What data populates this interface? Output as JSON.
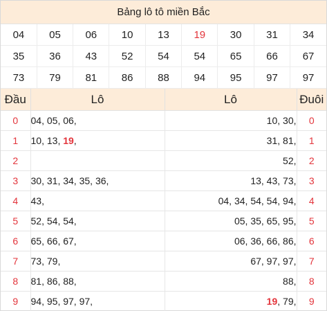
{
  "title": "Bảng lô tô miền Bắc",
  "grid": [
    [
      "04",
      "05",
      "06",
      "10",
      "13",
      "19",
      "30",
      "31",
      "34"
    ],
    [
      "35",
      "36",
      "43",
      "52",
      "54",
      "54",
      "65",
      "66",
      "67"
    ],
    [
      "73",
      "79",
      "81",
      "86",
      "88",
      "94",
      "95",
      "97",
      "97"
    ]
  ],
  "grid_highlight": [
    "19"
  ],
  "headers": {
    "dau": "Đầu",
    "lo_left": "Lô",
    "lo_right": "Lô",
    "duoi": "Đuôi"
  },
  "rows": [
    {
      "dau": "0",
      "left": [
        "04",
        "05",
        "06"
      ],
      "right": [
        "10",
        "30"
      ],
      "duoi": "0"
    },
    {
      "dau": "1",
      "left": [
        "10",
        "13",
        "19"
      ],
      "right": [
        "31",
        "81"
      ],
      "duoi": "1"
    },
    {
      "dau": "2",
      "left": [],
      "right": [
        "52"
      ],
      "duoi": "2"
    },
    {
      "dau": "3",
      "left": [
        "30",
        "31",
        "34",
        "35",
        "36"
      ],
      "right": [
        "13",
        "43",
        "73"
      ],
      "duoi": "3"
    },
    {
      "dau": "4",
      "left": [
        "43"
      ],
      "right": [
        "04",
        "34",
        "54",
        "54",
        "94"
      ],
      "duoi": "4"
    },
    {
      "dau": "5",
      "left": [
        "52",
        "54",
        "54"
      ],
      "right": [
        "05",
        "35",
        "65",
        "95"
      ],
      "duoi": "5"
    },
    {
      "dau": "6",
      "left": [
        "65",
        "66",
        "67"
      ],
      "right": [
        "06",
        "36",
        "66",
        "86"
      ],
      "duoi": "6"
    },
    {
      "dau": "7",
      "left": [
        "73",
        "79"
      ],
      "right": [
        "67",
        "97",
        "97"
      ],
      "duoi": "7"
    },
    {
      "dau": "8",
      "left": [
        "81",
        "86",
        "88"
      ],
      "right": [
        "88"
      ],
      "duoi": "8"
    },
    {
      "dau": "9",
      "left": [
        "94",
        "95",
        "97",
        "97"
      ],
      "right": [
        "19",
        "79"
      ],
      "duoi": "9"
    }
  ],
  "colors": {
    "accent_red": "#e3343b",
    "header_bg": "#fdecd9"
  }
}
